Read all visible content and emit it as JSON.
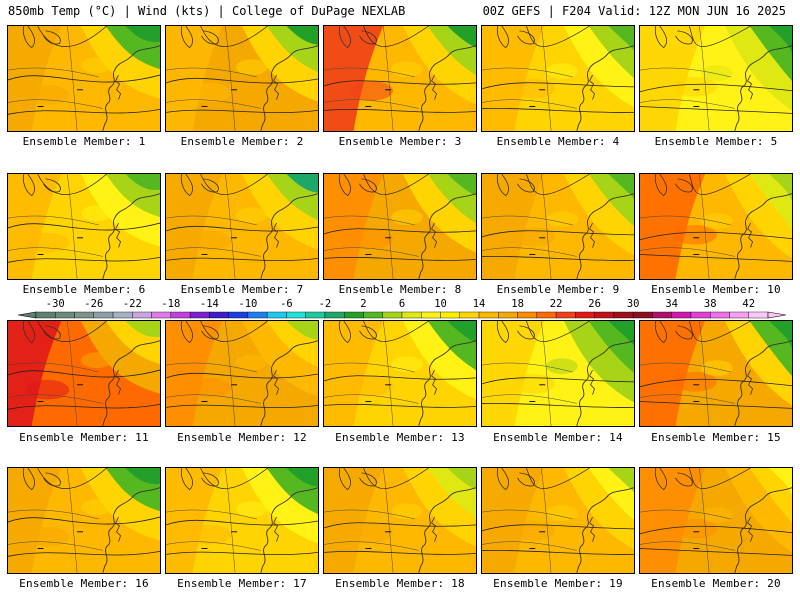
{
  "header": {
    "left": "850mb Temp (°C) | Wind (kts) | College of DuPage NEXLAB",
    "right": "00Z GEFS | F204 Valid: 12Z MON JUN 16 2025"
  },
  "colorbar": {
    "labels": [
      "-30",
      "-26",
      "-22",
      "-18",
      "-14",
      "-10",
      "-6",
      "-2",
      "2",
      "6",
      "10",
      "14",
      "18",
      "22",
      "26",
      "30",
      "34",
      "38",
      "42"
    ],
    "colors": [
      "#5f7f6f",
      "#6e8a7a",
      "#7d9488",
      "#8e9ea6",
      "#a6b2c4",
      "#c9a6e0",
      "#e07ae8",
      "#c040e0",
      "#7a20d0",
      "#3c1fc8",
      "#1a3fe0",
      "#1a7ff0",
      "#20c8f0",
      "#22e0d8",
      "#20c8a0",
      "#1ea868",
      "#22a02a",
      "#55b820",
      "#a8d418",
      "#e0e814",
      "#fff214",
      "#fff000",
      "#ffd400",
      "#ffb800",
      "#f5a800",
      "#ff8c00",
      "#ff6a00",
      "#f04018",
      "#e01a1a",
      "#c0141c",
      "#a01018",
      "#8c1020",
      "#b0106a",
      "#d018b0",
      "#e040d8",
      "#f070e8",
      "#f8a0f0",
      "#fcc8f8"
    ]
  },
  "members": [
    {
      "label": "Ensemble Member: 1",
      "field": [
        "#f5a800",
        "#ffb800",
        "#ffd400",
        "#55b820",
        "#22a02a"
      ]
    },
    {
      "label": "Ensemble Member: 2",
      "field": [
        "#ffb800",
        "#f5a800",
        "#ffd400",
        "#a8d418",
        "#22a02a"
      ]
    },
    {
      "label": "Ensemble Member: 3",
      "field": [
        "#f04018",
        "#ffb800",
        "#ffd400",
        "#a8d418",
        "#22a02a"
      ]
    },
    {
      "label": "Ensemble Member: 4",
      "field": [
        "#ffb800",
        "#ffd400",
        "#fff214",
        "#a8d418",
        "#55b820"
      ]
    },
    {
      "label": "Ensemble Member: 5",
      "field": [
        "#ffd400",
        "#fff214",
        "#e0e814",
        "#55b820",
        "#22a02a"
      ]
    },
    {
      "label": "Ensemble Member: 6",
      "field": [
        "#ffb800",
        "#ffd400",
        "#fff214",
        "#a8d418",
        "#55b820"
      ]
    },
    {
      "label": "Ensemble Member: 7",
      "field": [
        "#f5a800",
        "#ffb800",
        "#ffd400",
        "#a8d418",
        "#1ea868"
      ]
    },
    {
      "label": "Ensemble Member: 8",
      "field": [
        "#ff8c00",
        "#f5a800",
        "#ffd400",
        "#a8d418",
        "#55b820"
      ]
    },
    {
      "label": "Ensemble Member: 9",
      "field": [
        "#f5a800",
        "#ffb800",
        "#ffd400",
        "#a8d418",
        "#55b820"
      ]
    },
    {
      "label": "Ensemble Member: 10",
      "field": [
        "#ff6a00",
        "#ffb800",
        "#ffd400",
        "#e0e814",
        "#a8d418"
      ]
    },
    {
      "label": "Ensemble Member: 11",
      "field": [
        "#e01a1a",
        "#ff6a00",
        "#f5a800",
        "#ffd400",
        "#a8d418"
      ]
    },
    {
      "label": "Ensemble Member: 12",
      "field": [
        "#ff8c00",
        "#f5a800",
        "#ffb800",
        "#ffd400",
        "#a8d418"
      ]
    },
    {
      "label": "Ensemble Member: 13",
      "field": [
        "#ffb800",
        "#ffd400",
        "#fff214",
        "#55b820",
        "#22a02a"
      ]
    },
    {
      "label": "Ensemble Member: 14",
      "field": [
        "#ffd400",
        "#fff214",
        "#a8d418",
        "#55b820",
        "#22a02a"
      ]
    },
    {
      "label": "Ensemble Member: 15",
      "field": [
        "#ff6a00",
        "#f5a800",
        "#ffd400",
        "#55b820",
        "#22a02a"
      ]
    },
    {
      "label": "Ensemble Member: 16",
      "field": [
        "#f5a800",
        "#ffb800",
        "#ffd400",
        "#55b820",
        "#22a02a"
      ]
    },
    {
      "label": "Ensemble Member: 17",
      "field": [
        "#ffb800",
        "#ffd400",
        "#fff214",
        "#55b820",
        "#22a02a"
      ]
    },
    {
      "label": "Ensemble Member: 18",
      "field": [
        "#f5a800",
        "#ffb800",
        "#ffd400",
        "#e0e814",
        "#a8d418"
      ]
    },
    {
      "label": "Ensemble Member: 19",
      "field": [
        "#f5a800",
        "#ffb800",
        "#ffd400",
        "#fff214",
        "#a8d418"
      ]
    },
    {
      "label": "Ensemble Member: 20",
      "field": [
        "#ff8c00",
        "#f5a800",
        "#ffb800",
        "#ffd400",
        "#fff214"
      ]
    }
  ]
}
